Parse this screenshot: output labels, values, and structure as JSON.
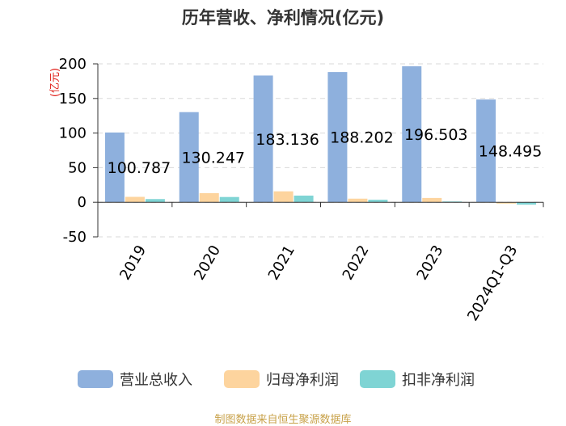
{
  "title": "历年营收、净利情况(亿元)",
  "source": "制图数据来自恒生聚源数据库",
  "chart_data": {
    "type": "bar",
    "title": "历年营收、净利情况(亿元)",
    "ylabel": "(亿元)",
    "xlabel": "",
    "ylim": [
      -50,
      200
    ],
    "yticks": [
      -50,
      0,
      50,
      100,
      150,
      200
    ],
    "grid": true,
    "legend_position": "bottom",
    "categories": [
      "2019",
      "2020",
      "2021",
      "2022",
      "2023",
      "2024Q1-Q3"
    ],
    "series": [
      {
        "name": "营业总收入",
        "color": "#8eb0dd",
        "values": [
          100.787,
          130.247,
          183.136,
          188.202,
          196.503,
          148.495
        ],
        "data_labels": [
          "100.787",
          "130.247",
          "183.136",
          "188.202",
          "196.503",
          "148.495"
        ]
      },
      {
        "name": "归母净利润",
        "color": "#fdd49e",
        "values": [
          7.8,
          13.2,
          15.8,
          5.2,
          6.2,
          -2.0
        ]
      },
      {
        "name": "扣非净利润",
        "color": "#7fd4d4",
        "values": [
          4.6,
          7.6,
          9.6,
          3.6,
          1.1,
          -3.5
        ]
      }
    ]
  }
}
